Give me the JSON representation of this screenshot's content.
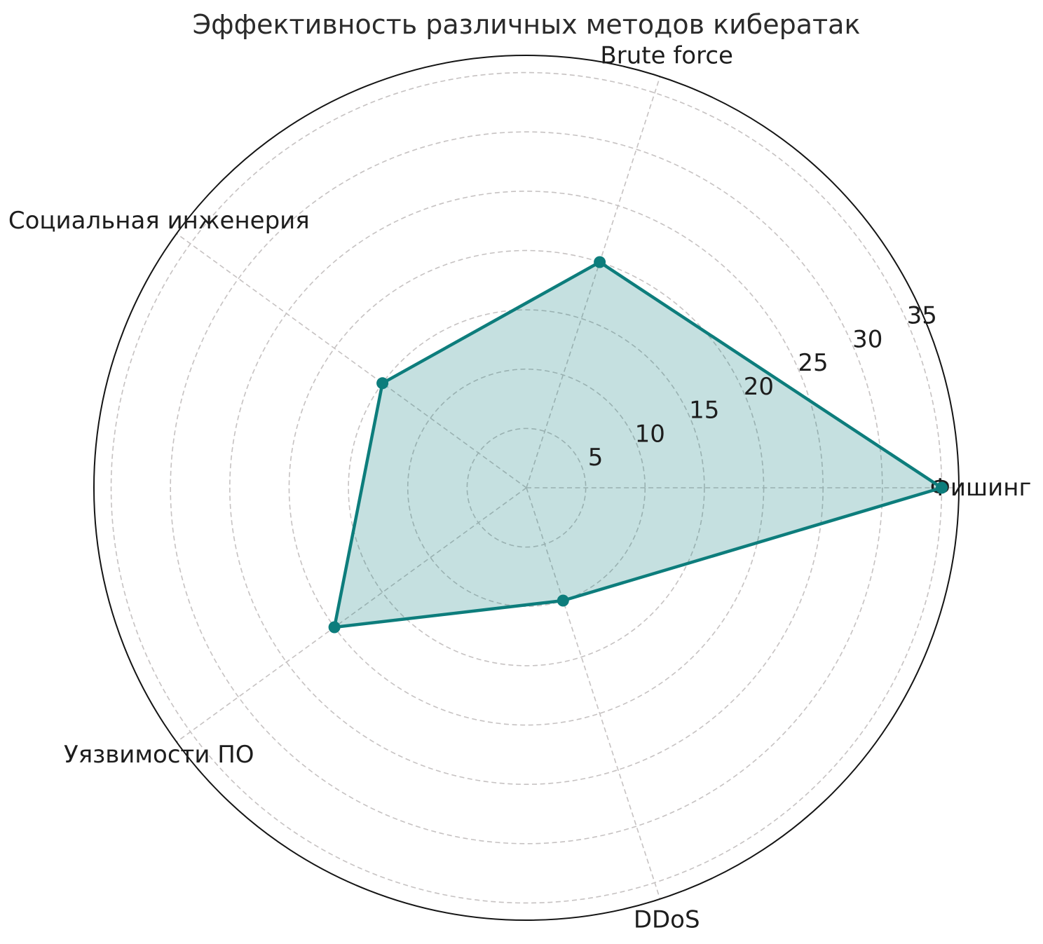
{
  "chart_data": {
    "type": "radar",
    "polar": true,
    "title": "Эффективность различных методов кибератак",
    "categories": [
      "Фишинг",
      "Brute force",
      "Социальная инженерия",
      "Уязвимости ПО",
      "DDoS"
    ],
    "values": [
      35,
      20,
      15,
      20,
      10
    ],
    "angles_deg": [
      0,
      72,
      144,
      216,
      288
    ],
    "r_axis": {
      "ticks": [
        5,
        10,
        15,
        20,
        25,
        30,
        35
      ],
      "max": 36.45,
      "label_angle_deg": 23.5,
      "grid": "dashed"
    },
    "legend": null,
    "colors": {
      "line": "#0d7d7c",
      "fill": "rgba(13,125,124,0.24)",
      "grid": "#c6c2c2",
      "spine": "#141414",
      "text": "#1d1d1d"
    }
  }
}
